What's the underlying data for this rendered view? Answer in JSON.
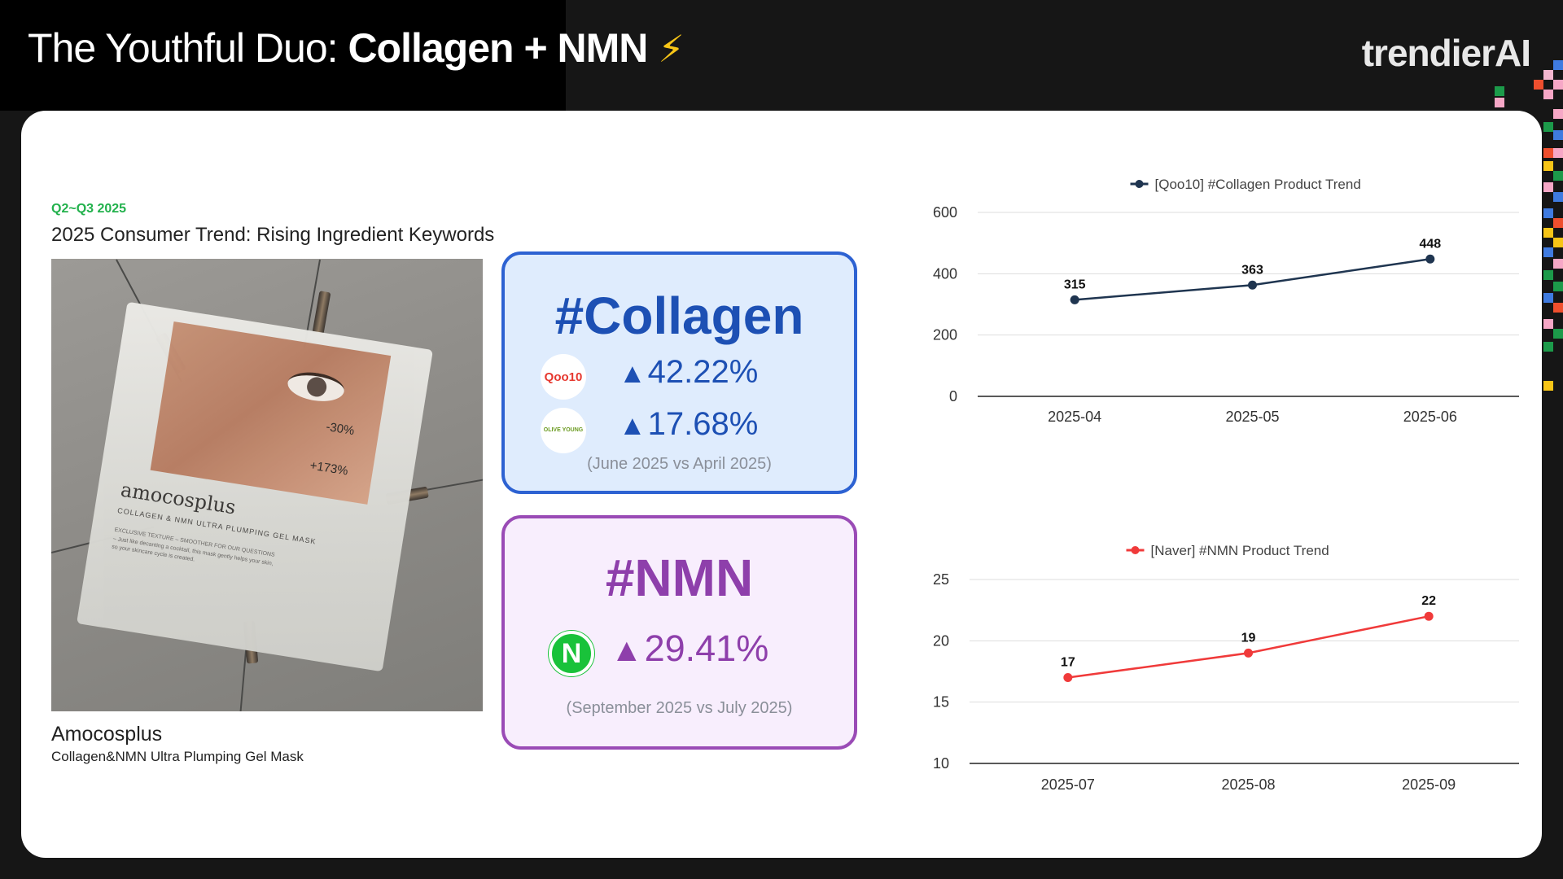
{
  "header": {
    "title_light": "The Youthful Duo: ",
    "title_bold": "Collagen + NMN",
    "title_emoji": "⚡",
    "logo": "trendierAI"
  },
  "left_panel": {
    "eyebrow": "Q2~Q3 2025",
    "heading": "2025 Consumer Trend: Rising Ingredient Keywords",
    "product_image": {
      "brand_print": "amocosplus",
      "sub_print": "COLLAGEN & NMN ULTRA PLUMPING GEL MASK",
      "fine_print": "EXCLUSIVE TEXTURE – SMOOTHER FOR OUR QUESTIONS – Just like decanting a cocktail, this mask gently helps your skin, so your skincare cycle is created.",
      "stat1": "-30%",
      "stat2": "+173%"
    },
    "product_brand": "Amocosplus",
    "product_name": "Collagen&NMN Ultra Plumping Gel Mask"
  },
  "keywords": {
    "collagen": {
      "title": "#Collagen",
      "qoo10_logo": "Qoo10",
      "qoo10_change": "42.22%",
      "oliveyoung_logo": "OLIVE YOUNG",
      "oliveyoung_change": "17.68%",
      "comparison": "(June 2025 vs April 2025)",
      "color": "#1d50b4"
    },
    "nmn": {
      "title": "#NMN",
      "naver_logo": "N",
      "naver_change": "29.41%",
      "comparison": "(September 2025 vs July 2025)",
      "color": "#8e3fab"
    },
    "up_arrow": "▲"
  },
  "chart_data": [
    {
      "type": "line",
      "title": "[Qoo10] #Collagen Product Trend",
      "legend_position": "top-center",
      "categories": [
        "2025-04",
        "2025-05",
        "2025-06"
      ],
      "series": [
        {
          "name": "[Qoo10] #Collagen Product Trend",
          "values": [
            315,
            363,
            448
          ],
          "color": "#1f3550"
        }
      ],
      "yticks": [
        0,
        200,
        400,
        600
      ],
      "ylim": [
        0,
        600
      ],
      "grid": true
    },
    {
      "type": "line",
      "title": "[Naver] #NMN Product Trend",
      "legend_position": "top-center",
      "categories": [
        "2025-07",
        "2025-08",
        "2025-09"
      ],
      "series": [
        {
          "name": "[Naver] #NMN Product Trend",
          "values": [
            17,
            19,
            22
          ],
          "color": "#f03a3a"
        }
      ],
      "yticks": [
        10,
        15,
        20,
        25
      ],
      "ylim": [
        10,
        25
      ],
      "grid": true
    }
  ]
}
